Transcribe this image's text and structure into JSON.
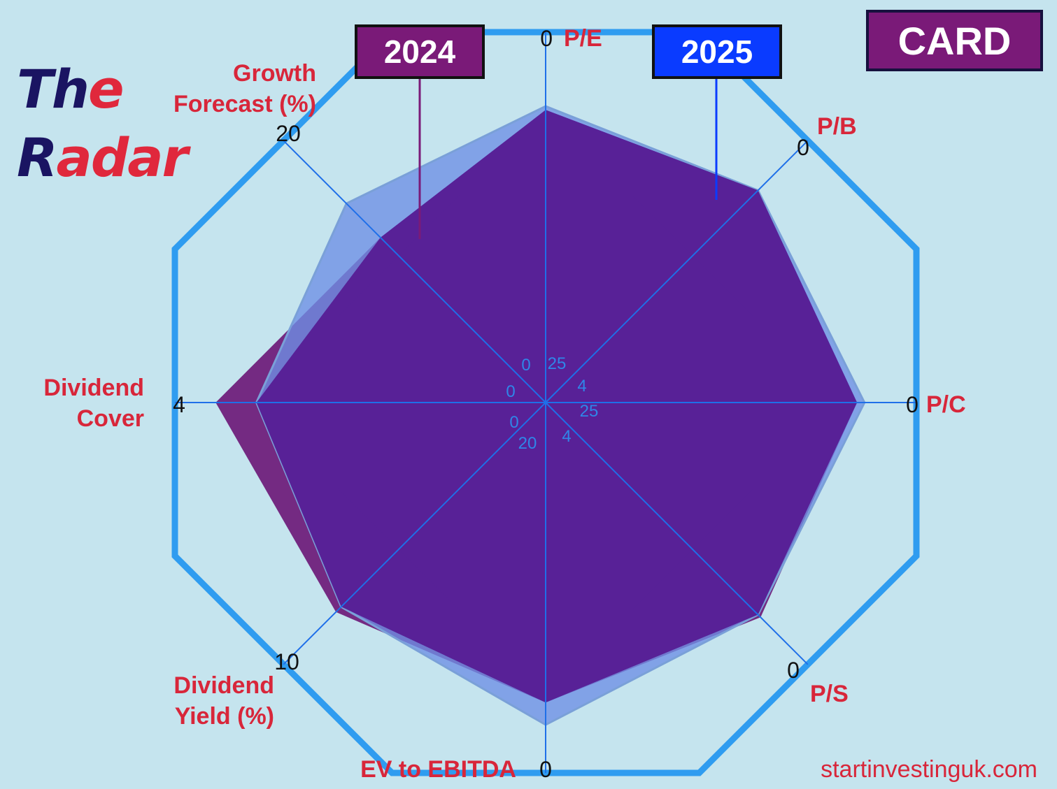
{
  "brand": {
    "line1": {
      "part_dark": "Th",
      "part_red": "e"
    },
    "line2": {
      "part_dark": "R",
      "part_red": "adar"
    }
  },
  "ticker": "CARD",
  "legend": {
    "year_a": {
      "label": "2024",
      "color": "#7a1a78"
    },
    "year_b": {
      "label": "2025",
      "color": "#0a3bff"
    }
  },
  "footer": {
    "url": "startinvestinguk.com"
  },
  "colors": {
    "frame": "#2f9cf0",
    "axis": "#1f6fe8",
    "label_red": "#d8263a",
    "series_a_fill": "#6d1a78",
    "series_b_fill": "#6e8fe6",
    "overlap_fill": "#561c94"
  },
  "chart_data": {
    "type": "radar",
    "axes": [
      {
        "label": "P/E",
        "outer_value": "0",
        "inner_value": "25"
      },
      {
        "label": "P/B",
        "outer_value": "0",
        "inner_value": "4"
      },
      {
        "label": "P/C",
        "outer_value": "0",
        "inner_value": "25"
      },
      {
        "label": "P/S",
        "outer_value": "0",
        "inner_value": "4"
      },
      {
        "label": "EV to EBITDA",
        "outer_value": "0",
        "inner_value": "20"
      },
      {
        "label": "Dividend Yield (%)",
        "outer_value": "10",
        "inner_value": "0"
      },
      {
        "label": "Dividend Cover",
        "outer_value": "4",
        "inner_value": "0"
      },
      {
        "label": "Growth Forecast (%)",
        "outer_value": "20",
        "inner_value": "0"
      }
    ],
    "series": [
      {
        "name": "2024",
        "scores": [
          0.79,
          0.81,
          0.84,
          0.82,
          0.81,
          0.8,
          0.89,
          0.63
        ]
      },
      {
        "name": "2025",
        "scores": [
          0.8,
          0.81,
          0.86,
          0.81,
          0.87,
          0.78,
          0.78,
          0.76
        ]
      }
    ],
    "range": [
      0,
      1
    ],
    "grid_rings": [
      0.1,
      0.56
    ]
  }
}
